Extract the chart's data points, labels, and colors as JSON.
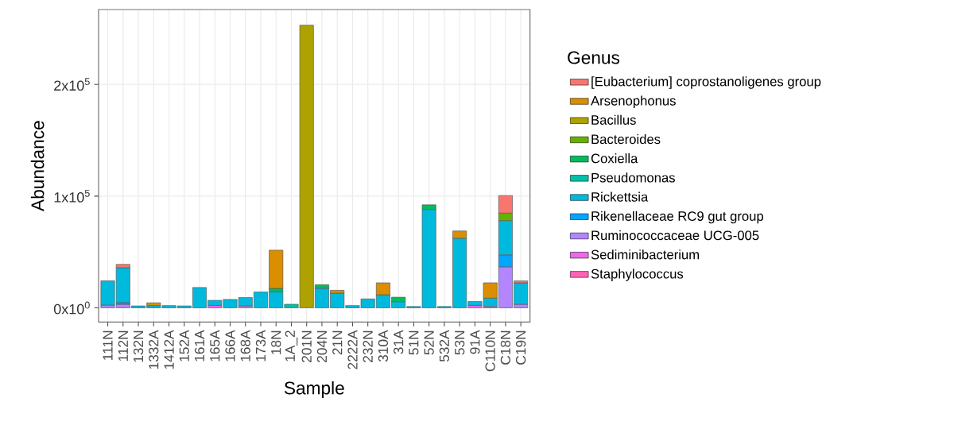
{
  "chart_data": {
    "type": "bar",
    "stacked": true,
    "xlabel": "Sample",
    "ylabel": "Abundance",
    "legend_title": "Genus",
    "legend": "right",
    "grid": true,
    "categories": [
      "111N",
      "112N",
      "132N",
      "1332A",
      "1412A",
      "152A",
      "161A",
      "165A",
      "166A",
      "168A",
      "173A",
      "18N",
      "1A_2",
      "201N",
      "204N",
      "21N",
      "2222A",
      "232N",
      "310A",
      "31A",
      "51N",
      "52N",
      "532A",
      "53N",
      "91A",
      "C110N",
      "C18N",
      "C19N"
    ],
    "ylim": [
      -12700,
      267000
    ],
    "yticks": [
      {
        "value": 0,
        "label": "0x10$^{0}$"
      },
      {
        "value": 100000,
        "label": "1x10$^{5}$"
      },
      {
        "value": 200000,
        "label": "2x10$^{5}$"
      }
    ],
    "series": [
      {
        "name": "Staphylococcus",
        "color": "#ff63b6",
        "values": [
          null,
          null,
          null,
          null,
          null,
          null,
          null,
          null,
          null,
          null,
          null,
          null,
          null,
          null,
          null,
          null,
          null,
          null,
          null,
          null,
          null,
          null,
          null,
          null,
          null,
          1200,
          null,
          null
        ]
      },
      {
        "name": "Sediminibacterium",
        "color": "#ef67eb",
        "values": [
          null,
          null,
          null,
          null,
          null,
          null,
          null,
          2200,
          null,
          null,
          null,
          null,
          null,
          null,
          null,
          null,
          null,
          null,
          null,
          null,
          null,
          null,
          null,
          null,
          2200,
          null,
          null,
          null
        ]
      },
      {
        "name": "Ruminococcaceae UCG-005",
        "color": "#b385ff",
        "values": [
          2500,
          3200,
          null,
          null,
          null,
          null,
          null,
          null,
          null,
          1700,
          null,
          null,
          null,
          null,
          null,
          null,
          null,
          null,
          null,
          null,
          null,
          null,
          null,
          null,
          null,
          null,
          36700,
          3200
        ]
      },
      {
        "name": "Rikenellaceae RC9 gut group",
        "color": "#00a6ff",
        "values": [
          null,
          1500,
          null,
          null,
          null,
          null,
          null,
          null,
          null,
          null,
          null,
          null,
          null,
          null,
          null,
          null,
          null,
          null,
          null,
          null,
          null,
          null,
          null,
          null,
          null,
          null,
          10700,
          null
        ]
      },
      {
        "name": "Rickettsia",
        "color": "#00bade",
        "values": [
          21700,
          31200,
          1700,
          2000,
          2000,
          1700,
          18200,
          4500,
          7500,
          7500,
          14200,
          14200,
          null,
          null,
          17500,
          13200,
          2000,
          8000,
          11700,
          5500,
          1200,
          88000,
          1200,
          62300,
          3500,
          7500,
          30700,
          19200
        ]
      },
      {
        "name": "Pseudomonas",
        "color": "#00c1a7",
        "values": [
          null,
          null,
          null,
          null,
          null,
          null,
          null,
          null,
          null,
          null,
          null,
          null,
          3200,
          null,
          null,
          null,
          null,
          null,
          null,
          null,
          null,
          null,
          null,
          null,
          null,
          null,
          null,
          null
        ]
      },
      {
        "name": "Coxiella",
        "color": "#00bd5c",
        "values": [
          null,
          null,
          null,
          null,
          null,
          null,
          null,
          null,
          null,
          null,
          null,
          3200,
          null,
          null,
          3200,
          null,
          null,
          null,
          null,
          4000,
          null,
          4200,
          null,
          null,
          null,
          null,
          null,
          null
        ]
      },
      {
        "name": "Bacteroides",
        "color": "#64b200",
        "values": [
          null,
          null,
          null,
          null,
          null,
          null,
          null,
          null,
          null,
          null,
          null,
          null,
          null,
          null,
          null,
          null,
          null,
          null,
          null,
          null,
          null,
          null,
          null,
          null,
          null,
          null,
          6700,
          null
        ]
      },
      {
        "name": "Bacillus",
        "color": "#aea200",
        "values": [
          null,
          null,
          null,
          null,
          null,
          null,
          null,
          null,
          null,
          null,
          null,
          null,
          null,
          253000,
          null,
          null,
          null,
          null,
          null,
          null,
          null,
          null,
          null,
          null,
          null,
          null,
          null,
          null
        ]
      },
      {
        "name": "Arsenophonus",
        "color": "#db8e00",
        "values": [
          null,
          null,
          null,
          2500,
          null,
          null,
          null,
          null,
          null,
          null,
          null,
          34200,
          null,
          null,
          null,
          2500,
          null,
          null,
          10700,
          null,
          null,
          null,
          null,
          6500,
          null,
          13700,
          null,
          null
        ]
      },
      {
        "name": "[Eubacterium] coprostanoligenes group",
        "color": "#f8766d",
        "values": [
          null,
          3000,
          null,
          null,
          null,
          null,
          null,
          null,
          null,
          null,
          null,
          null,
          null,
          null,
          null,
          null,
          null,
          null,
          null,
          null,
          null,
          null,
          null,
          null,
          null,
          null,
          15700,
          1700
        ]
      }
    ]
  }
}
